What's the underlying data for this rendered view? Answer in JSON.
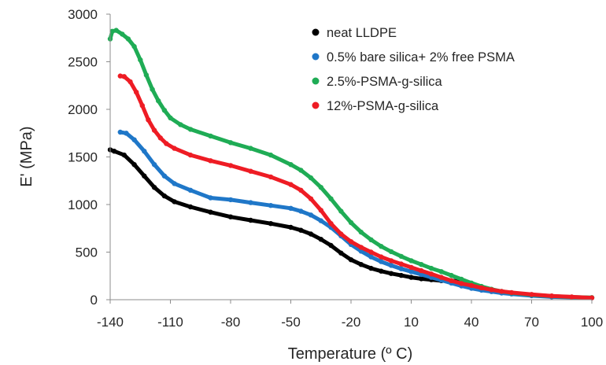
{
  "chart_data": {
    "type": "scatter",
    "xlabel": "Temperature (º C)",
    "ylabel": "E' (MPa)",
    "xlim": [
      -140,
      100
    ],
    "ylim": [
      0,
      3000
    ],
    "x_ticks": [
      -140,
      -110,
      -80,
      -50,
      -20,
      10,
      40,
      70,
      100
    ],
    "y_ticks": [
      0,
      500,
      1000,
      1500,
      2000,
      2500,
      3000
    ],
    "grid": false,
    "legend_position": "top-right",
    "series": [
      {
        "name": "neat LLDPE",
        "color": "#000000",
        "x": [
          -140,
          -138,
          -133,
          -128,
          -123,
          -118,
          -113,
          -108,
          -100,
          -90,
          -80,
          -70,
          -60,
          -50,
          -45,
          -40,
          -35,
          -30,
          -25,
          -20,
          -15,
          -10,
          -5,
          0,
          5,
          10,
          15,
          20,
          25,
          30,
          35
        ],
        "y": [
          1575,
          1560,
          1520,
          1420,
          1300,
          1180,
          1090,
          1030,
          975,
          920,
          870,
          835,
          800,
          760,
          730,
          690,
          635,
          570,
          490,
          420,
          370,
          330,
          300,
          275,
          255,
          235,
          220,
          210,
          200,
          198,
          195
        ]
      },
      {
        "name": "0.5% bare silica+ 2% free PSMA",
        "color": "#1f77c8",
        "x": [
          -135,
          -132,
          -128,
          -123,
          -118,
          -113,
          -108,
          -100,
          -90,
          -80,
          -70,
          -60,
          -50,
          -45,
          -40,
          -35,
          -30,
          -25,
          -20,
          -15,
          -10,
          -5,
          0,
          5,
          10,
          15,
          20,
          25,
          30,
          35,
          40,
          45,
          50,
          55,
          60,
          70,
          80,
          90,
          100
        ],
        "y": [
          1760,
          1750,
          1680,
          1560,
          1420,
          1300,
          1220,
          1150,
          1070,
          1050,
          1020,
          990,
          960,
          930,
          890,
          830,
          760,
          670,
          580,
          510,
          450,
          400,
          360,
          325,
          295,
          265,
          235,
          205,
          175,
          145,
          120,
          100,
          85,
          70,
          60,
          42,
          30,
          25,
          20
        ]
      },
      {
        "name": "2.5%-PSMA-g-silica",
        "color": "#1fac55",
        "x": [
          -140,
          -139,
          -137,
          -134,
          -131,
          -128,
          -125,
          -122,
          -119,
          -116,
          -113,
          -110,
          -105,
          -100,
          -90,
          -80,
          -70,
          -60,
          -50,
          -45,
          -40,
          -35,
          -30,
          -25,
          -20,
          -15,
          -10,
          -5,
          0,
          5,
          10,
          15,
          20,
          25,
          30,
          35,
          40,
          45,
          50,
          55,
          60,
          70,
          80,
          90,
          100
        ],
        "y": [
          2740,
          2820,
          2830,
          2790,
          2740,
          2660,
          2520,
          2360,
          2210,
          2090,
          1990,
          1910,
          1840,
          1790,
          1720,
          1650,
          1590,
          1520,
          1420,
          1360,
          1280,
          1180,
          1060,
          930,
          810,
          710,
          630,
          560,
          505,
          455,
          410,
          370,
          330,
          295,
          255,
          215,
          175,
          140,
          110,
          88,
          72,
          52,
          38,
          28,
          22
        ]
      },
      {
        "name": "12%-PSMA-g-silica",
        "color": "#ee1c24",
        "x": [
          -135,
          -133,
          -130,
          -127,
          -124,
          -121,
          -118,
          -115,
          -112,
          -108,
          -100,
          -90,
          -80,
          -70,
          -60,
          -50,
          -45,
          -40,
          -35,
          -30,
          -25,
          -20,
          -15,
          -10,
          -5,
          0,
          5,
          10,
          15,
          20,
          25,
          30,
          35,
          40,
          45,
          50,
          55,
          60,
          70,
          80,
          90,
          100
        ],
        "y": [
          2350,
          2345,
          2290,
          2180,
          2040,
          1890,
          1780,
          1700,
          1640,
          1590,
          1520,
          1460,
          1410,
          1350,
          1290,
          1210,
          1150,
          1060,
          940,
          800,
          690,
          610,
          550,
          500,
          450,
          410,
          375,
          340,
          305,
          270,
          235,
          200,
          170,
          150,
          125,
          105,
          88,
          75,
          55,
          40,
          30,
          20
        ]
      }
    ]
  }
}
